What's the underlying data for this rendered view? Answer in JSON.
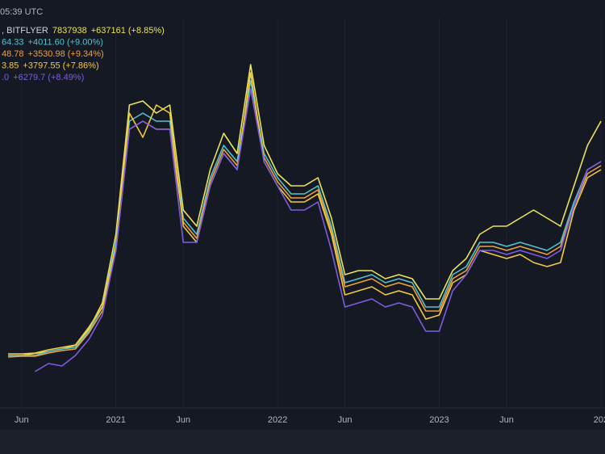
{
  "toolbar": {
    "time": "05:39 UTC"
  },
  "chart_data": {
    "type": "line",
    "x": [
      4,
      5,
      6,
      7,
      8,
      9,
      10,
      11,
      12,
      13,
      14,
      15,
      16,
      17,
      18,
      19,
      20,
      21,
      22,
      23,
      24,
      25,
      26,
      27,
      28,
      29,
      30,
      31,
      32,
      33,
      34,
      35,
      36,
      37,
      38,
      39,
      40,
      41,
      42,
      43,
      44,
      45,
      46,
      47,
      48
    ],
    "xlim": [
      3.4,
      48.3
    ],
    "xticks": [
      {
        "value": 5,
        "label": "Jun"
      },
      {
        "value": 12,
        "label": "2021"
      },
      {
        "value": 17,
        "label": "Jun"
      },
      {
        "value": 24,
        "label": "2022"
      },
      {
        "value": 29,
        "label": "Jun"
      },
      {
        "value": 36,
        "label": "2023"
      },
      {
        "value": 41,
        "label": "Jun"
      },
      {
        "value": 48,
        "label": "202"
      }
    ],
    "ylim": [
      0,
      100
    ],
    "grid": true,
    "series": [
      {
        "name": ", BITFLYER",
        "last": "7837938",
        "change": "+637161 (+8.85%)",
        "color": "#e9e25c",
        "values": [
          12,
          12,
          12.5,
          13,
          13.6,
          14.5,
          18.5,
          25,
          42,
          74,
          75,
          72,
          74,
          48,
          44,
          58,
          67,
          62,
          84,
          64,
          57,
          54,
          54,
          56,
          46,
          32,
          33,
          33,
          31,
          32,
          31,
          26,
          26,
          33,
          36,
          42,
          44,
          44,
          46,
          48,
          46,
          44,
          54,
          64,
          70
        ]
      },
      {
        "last": "64.33",
        "change": "+4011.60 (+9.00%)",
        "color": "#4fc4cf",
        "values": [
          12,
          12,
          12,
          13,
          13.6,
          14,
          18,
          24,
          40,
          70,
          72,
          70,
          70,
          46,
          42,
          56,
          64,
          60,
          80,
          62,
          56,
          52,
          52,
          54,
          44,
          30,
          31,
          32,
          30,
          31,
          30,
          24,
          24,
          32,
          34,
          40,
          40,
          39,
          40,
          39,
          38,
          40,
          50,
          58,
          60
        ]
      },
      {
        "last": "48.78",
        "change": "+3530.98 (+9.34%)",
        "color": "#f0a03a",
        "values": [
          11.6,
          11.8,
          11.8,
          12.6,
          13.2,
          13.6,
          17.6,
          23,
          38,
          68,
          70,
          68,
          68,
          45,
          41,
          55,
          63,
          59,
          78,
          61,
          55,
          51,
          51,
          53,
          43,
          29,
          30,
          31,
          29,
          30,
          29,
          23,
          23,
          31,
          33,
          39,
          39,
          38,
          39,
          38,
          37,
          39,
          49,
          57,
          59
        ]
      },
      {
        "last": "3.85",
        "change": "+3797.55 (+7.86%)",
        "color": "#f5c842",
        "values": [
          12.4,
          12.4,
          12.6,
          13.4,
          14,
          14.6,
          19,
          24,
          39,
          72,
          66,
          74,
          72,
          44,
          40,
          54,
          62,
          58,
          82,
          60,
          54,
          50,
          50,
          52,
          42,
          27,
          28,
          29,
          27,
          28,
          27,
          21,
          22,
          30,
          32,
          38,
          37,
          36,
          37,
          35,
          34,
          35,
          48,
          56,
          58
        ]
      },
      {
        "last": ".0",
        "change": "+6279.7 (+8.49%)",
        "color": "#7e5ce0",
        "values": [
          null,
          null,
          8,
          10,
          9.4,
          12,
          16,
          22,
          38,
          68,
          70,
          68,
          68,
          40,
          40,
          54,
          62,
          58,
          78,
          60,
          54,
          48,
          48,
          50,
          38,
          24,
          25,
          26,
          24,
          25,
          24,
          18,
          18,
          28,
          32,
          38,
          38,
          37,
          38,
          37,
          36,
          38,
          49,
          58,
          60
        ]
      }
    ]
  }
}
